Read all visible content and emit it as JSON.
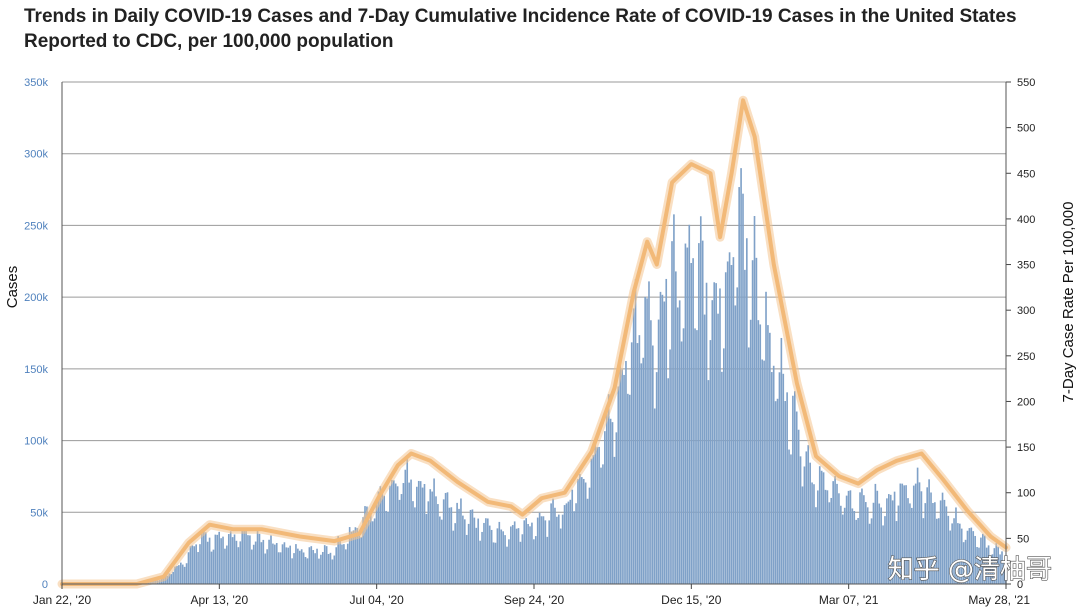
{
  "chart_data": {
    "type": "bar+line",
    "title": "Trends in Daily COVID-19 Cases and 7-Day Cumulative Incidence Rate of COVID-19 Cases in the United States Reported to CDC, per 100,000 population",
    "y_left_label": "Cases",
    "y_right_label": "7-Day Case Rate Per 100,000",
    "y_left_ticks": [
      "0",
      "50k",
      "100k",
      "150k",
      "200k",
      "250k",
      "300k",
      "350k"
    ],
    "y_left_range": [
      0,
      350000
    ],
    "y_right_ticks": [
      "0",
      "50",
      "100",
      "150",
      "200",
      "250",
      "300",
      "350",
      "400",
      "450",
      "500",
      "550"
    ],
    "y_right_range": [
      0,
      550
    ],
    "x_range": [
      "2020-01-22",
      "2021-05-28"
    ],
    "x_ticks": [
      "Jan 22, '20",
      "Apr 13, '20",
      "Jul 04, '20",
      "Sep 24, '20",
      "Dec 15, '20",
      "Mar 07, '21",
      "May 28, '21"
    ],
    "grid": true,
    "colors": {
      "bars": "#7fa1c8",
      "line": "#f4c48f",
      "grid": "#9a9a9a"
    },
    "daily_cases_points": [
      {
        "date": "2020-01-22",
        "value": 0
      },
      {
        "date": "2020-03-01",
        "value": 200
      },
      {
        "date": "2020-03-15",
        "value": 4000
      },
      {
        "date": "2020-03-25",
        "value": 15000
      },
      {
        "date": "2020-04-04",
        "value": 32000
      },
      {
        "date": "2020-04-13",
        "value": 30000
      },
      {
        "date": "2020-04-24",
        "value": 33000
      },
      {
        "date": "2020-05-10",
        "value": 27000
      },
      {
        "date": "2020-05-25",
        "value": 23000
      },
      {
        "date": "2020-06-10",
        "value": 22000
      },
      {
        "date": "2020-06-25",
        "value": 40000
      },
      {
        "date": "2020-07-04",
        "value": 55000
      },
      {
        "date": "2020-07-12",
        "value": 68000
      },
      {
        "date": "2020-07-18",
        "value": 72000
      },
      {
        "date": "2020-07-26",
        "value": 68000
      },
      {
        "date": "2020-08-08",
        "value": 55000
      },
      {
        "date": "2020-08-25",
        "value": 43000
      },
      {
        "date": "2020-09-08",
        "value": 34000
      },
      {
        "date": "2020-09-24",
        "value": 42000
      },
      {
        "date": "2020-10-10",
        "value": 52000
      },
      {
        "date": "2020-10-24",
        "value": 80000
      },
      {
        "date": "2020-11-05",
        "value": 120000
      },
      {
        "date": "2020-11-13",
        "value": 170000
      },
      {
        "date": "2020-11-20",
        "value": 185000
      },
      {
        "date": "2020-11-27",
        "value": 170000
      },
      {
        "date": "2020-12-04",
        "value": 205000
      },
      {
        "date": "2020-12-15",
        "value": 215000
      },
      {
        "date": "2020-12-25",
        "value": 200000
      },
      {
        "date": "2021-01-01",
        "value": 190000
      },
      {
        "date": "2021-01-08",
        "value": 255000
      },
      {
        "date": "2021-01-14",
        "value": 225000
      },
      {
        "date": "2021-01-25",
        "value": 165000
      },
      {
        "date": "2021-02-05",
        "value": 115000
      },
      {
        "date": "2021-02-15",
        "value": 75000
      },
      {
        "date": "2021-02-25",
        "value": 68000
      },
      {
        "date": "2021-03-07",
        "value": 55000
      },
      {
        "date": "2021-03-20",
        "value": 55000
      },
      {
        "date": "2021-04-01",
        "value": 62000
      },
      {
        "date": "2021-04-12",
        "value": 68000
      },
      {
        "date": "2021-04-20",
        "value": 58000
      },
      {
        "date": "2021-05-01",
        "value": 44000
      },
      {
        "date": "2021-05-15",
        "value": 30000
      },
      {
        "date": "2021-05-28",
        "value": 20000
      }
    ],
    "rate_line": [
      {
        "date": "2020-01-22",
        "value": 0
      },
      {
        "date": "2020-03-01",
        "value": 0
      },
      {
        "date": "2020-03-15",
        "value": 8
      },
      {
        "date": "2020-03-28",
        "value": 45
      },
      {
        "date": "2020-04-08",
        "value": 65
      },
      {
        "date": "2020-04-20",
        "value": 60
      },
      {
        "date": "2020-05-05",
        "value": 60
      },
      {
        "date": "2020-05-25",
        "value": 52
      },
      {
        "date": "2020-06-12",
        "value": 47
      },
      {
        "date": "2020-06-25",
        "value": 55
      },
      {
        "date": "2020-07-05",
        "value": 95
      },
      {
        "date": "2020-07-15",
        "value": 130
      },
      {
        "date": "2020-07-22",
        "value": 143
      },
      {
        "date": "2020-08-01",
        "value": 135
      },
      {
        "date": "2020-08-15",
        "value": 112
      },
      {
        "date": "2020-08-31",
        "value": 90
      },
      {
        "date": "2020-09-12",
        "value": 85
      },
      {
        "date": "2020-09-18",
        "value": 76
      },
      {
        "date": "2020-09-28",
        "value": 94
      },
      {
        "date": "2020-10-10",
        "value": 100
      },
      {
        "date": "2020-10-24",
        "value": 145
      },
      {
        "date": "2020-11-05",
        "value": 215
      },
      {
        "date": "2020-11-15",
        "value": 320
      },
      {
        "date": "2020-11-22",
        "value": 375
      },
      {
        "date": "2020-11-27",
        "value": 350
      },
      {
        "date": "2020-12-05",
        "value": 440
      },
      {
        "date": "2020-12-15",
        "value": 460
      },
      {
        "date": "2020-12-25",
        "value": 450
      },
      {
        "date": "2020-12-30",
        "value": 380
      },
      {
        "date": "2021-01-05",
        "value": 450
      },
      {
        "date": "2021-01-11",
        "value": 530
      },
      {
        "date": "2021-01-17",
        "value": 490
      },
      {
        "date": "2021-01-27",
        "value": 350
      },
      {
        "date": "2021-02-08",
        "value": 220
      },
      {
        "date": "2021-02-18",
        "value": 140
      },
      {
        "date": "2021-03-02",
        "value": 118
      },
      {
        "date": "2021-03-12",
        "value": 110
      },
      {
        "date": "2021-03-22",
        "value": 125
      },
      {
        "date": "2021-04-01",
        "value": 135
      },
      {
        "date": "2021-04-14",
        "value": 143
      },
      {
        "date": "2021-04-25",
        "value": 115
      },
      {
        "date": "2021-05-08",
        "value": 80
      },
      {
        "date": "2021-05-20",
        "value": 52
      },
      {
        "date": "2021-05-28",
        "value": 40
      }
    ]
  },
  "watermark": {
    "text": "知乎 @清柚哥"
  }
}
